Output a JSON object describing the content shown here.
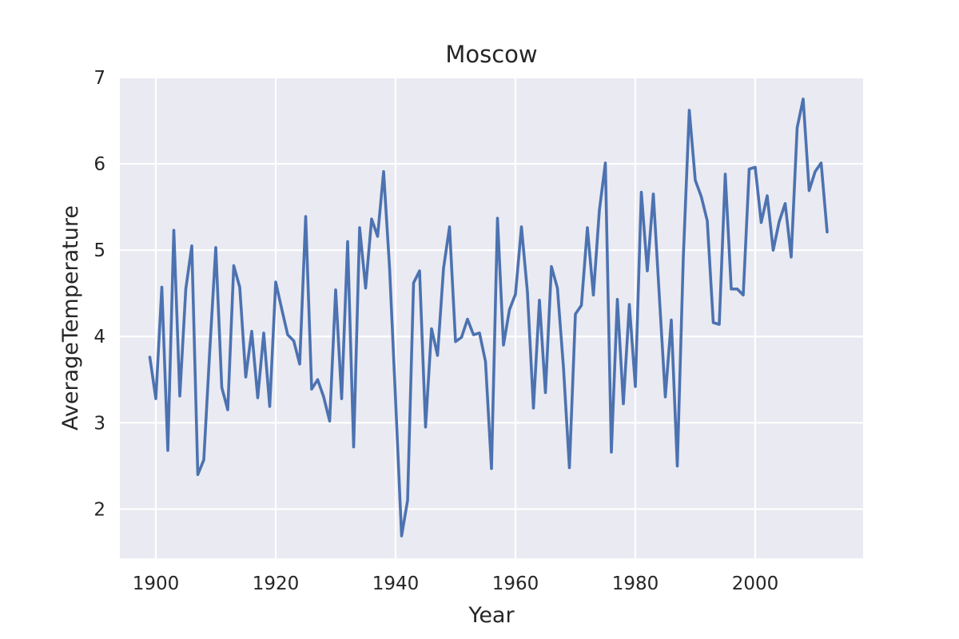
{
  "chart_data": {
    "type": "line",
    "title": "Moscow",
    "xlabel": "Year",
    "ylabel": "AverageTemperature",
    "xlim": [
      1894,
      2018
    ],
    "ylim": [
      1.43,
      7
    ],
    "grid": true,
    "colors": {
      "line": "#4c72b0",
      "plot_bg": "#eaeaf2",
      "grid": "#ffffff",
      "text": "#262626"
    },
    "x_ticks": [
      1900,
      1920,
      1940,
      1960,
      1980,
      2000
    ],
    "y_ticks": [
      2,
      3,
      4,
      5,
      6,
      7
    ],
    "series": [
      {
        "x": [
          1899,
          1900,
          1901,
          1902,
          1903,
          1904,
          1905,
          1906,
          1907,
          1908,
          1909,
          1910,
          1911,
          1912,
          1913,
          1914,
          1915,
          1916,
          1917,
          1918,
          1919,
          1920,
          1921,
          1922,
          1923,
          1924,
          1925,
          1926,
          1927,
          1928,
          1929,
          1930,
          1931,
          1932,
          1933,
          1934,
          1935,
          1936,
          1937,
          1938,
          1939,
          1940,
          1941,
          1942,
          1943,
          1944,
          1945,
          1946,
          1947,
          1948,
          1949,
          1950,
          1951,
          1952,
          1953,
          1954,
          1955,
          1956,
          1957,
          1958,
          1959,
          1960,
          1961,
          1962,
          1963,
          1964,
          1965,
          1966,
          1967,
          1968,
          1969,
          1970,
          1971,
          1972,
          1973,
          1974,
          1975,
          1976,
          1977,
          1978,
          1979,
          1980,
          1981,
          1982,
          1983,
          1984,
          1985,
          1986,
          1987,
          1988,
          1989,
          1990,
          1991,
          1992,
          1993,
          1994,
          1995,
          1996,
          1997,
          1998,
          1999,
          2000,
          2001,
          2002,
          2003,
          2004,
          2005,
          2006,
          2007,
          2008,
          2009,
          2010,
          2011,
          2012
        ],
        "values": [
          3.76,
          3.28,
          4.57,
          2.68,
          5.23,
          3.31,
          4.55,
          5.05,
          2.4,
          2.57,
          3.84,
          5.03,
          3.41,
          3.15,
          4.82,
          4.57,
          3.53,
          4.06,
          3.29,
          4.04,
          3.19,
          4.63,
          4.32,
          4.02,
          3.95,
          3.68,
          5.39,
          3.39,
          3.5,
          3.3,
          3.02,
          4.54,
          3.28,
          5.1,
          2.72,
          5.26,
          4.56,
          5.36,
          5.16,
          5.91,
          4.79,
          3.26,
          1.69,
          2.1,
          4.62,
          4.76,
          2.95,
          4.09,
          3.78,
          4.79,
          5.27,
          3.94,
          3.99,
          4.2,
          4.02,
          4.04,
          3.71,
          2.47,
          5.37,
          3.9,
          4.31,
          4.49,
          5.27,
          4.51,
          3.17,
          4.42,
          3.35,
          4.81,
          4.56,
          3.65,
          2.48,
          4.26,
          4.36,
          5.26,
          4.48,
          5.46,
          6.01,
          2.66,
          4.43,
          3.22,
          4.37,
          3.42,
          5.67,
          4.76,
          5.65,
          4.47,
          3.3,
          4.19,
          2.5,
          4.91,
          6.62,
          5.81,
          5.62,
          5.34,
          4.16,
          4.14,
          5.88,
          4.55,
          4.55,
          4.48,
          5.94,
          5.96,
          5.32,
          5.63,
          5.0,
          5.33,
          5.54,
          4.92,
          6.42,
          6.75,
          5.69,
          5.91,
          6.01,
          5.21
        ]
      }
    ]
  }
}
